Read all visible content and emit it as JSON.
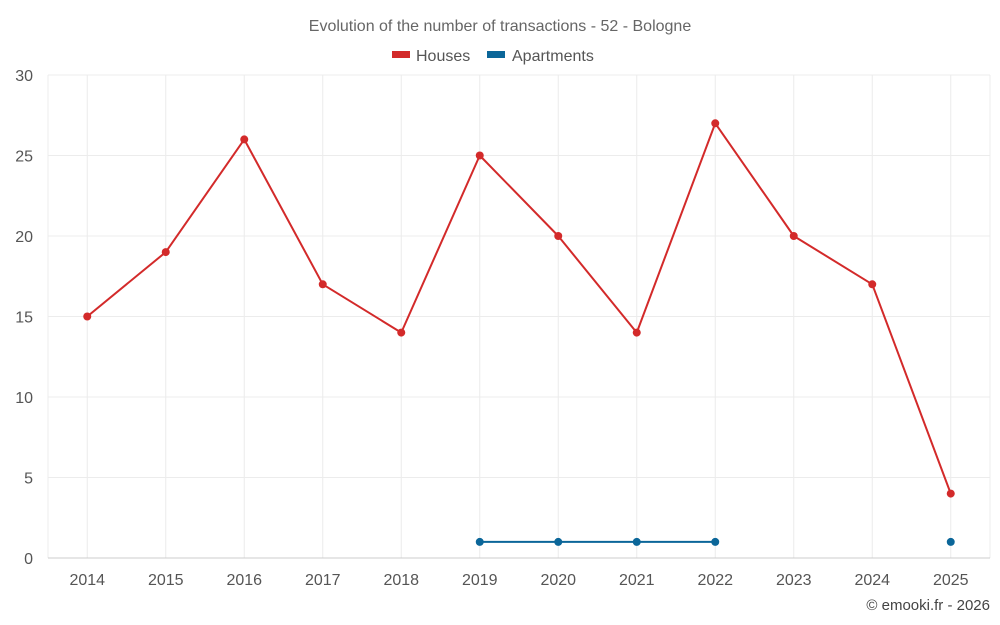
{
  "chart_data": {
    "type": "line",
    "title": "Evolution of the number of transactions - 52 - Bologne",
    "xlabel": "",
    "ylabel": "",
    "categories": [
      "2014",
      "2015",
      "2016",
      "2017",
      "2018",
      "2019",
      "2020",
      "2021",
      "2022",
      "2023",
      "2024",
      "2025"
    ],
    "ylim": [
      0,
      30
    ],
    "yticks": [
      0,
      5,
      10,
      15,
      20,
      25,
      30
    ],
    "grid": true,
    "legend_position": "top-center",
    "series": [
      {
        "name": "Houses",
        "color": "#d32a2a",
        "values": [
          15,
          19,
          26,
          17,
          14,
          25,
          20,
          14,
          27,
          20,
          17,
          4
        ]
      },
      {
        "name": "Apartments",
        "color": "#0b6699",
        "values": [
          null,
          null,
          null,
          null,
          null,
          1,
          1,
          1,
          1,
          null,
          null,
          1
        ]
      }
    ],
    "credit": "© emooki.fr - 2026"
  }
}
